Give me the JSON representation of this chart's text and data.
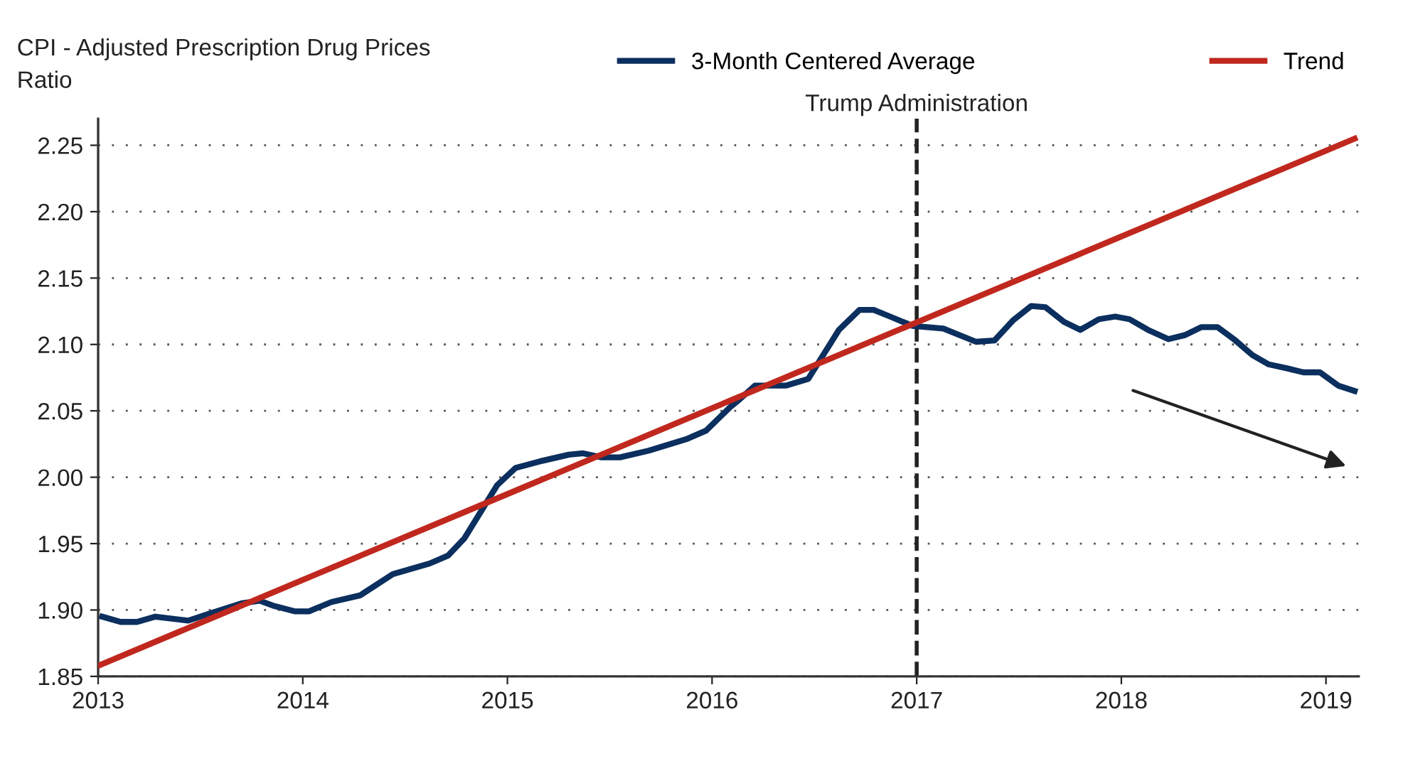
{
  "chart_data": {
    "type": "line",
    "ylabel": "CPI - Adjusted Prescription Drug Prices\nRatio",
    "series": [
      {
        "name": "3-Month Centered Average",
        "color": "#0b2f5e",
        "x": [
          2013.02,
          2013.11,
          2013.19,
          2013.28,
          2013.44,
          2013.54,
          2013.7,
          2013.79,
          2013.86,
          2013.96,
          2014.03,
          2014.14,
          2014.28,
          2014.44,
          2014.62,
          2014.71,
          2014.79,
          2014.95,
          2015.04,
          2015.16,
          2015.3,
          2015.37,
          2015.46,
          2015.55,
          2015.69,
          2015.88,
          2015.97,
          2016.09,
          2016.13,
          2016.21,
          2016.36,
          2016.47,
          2016.62,
          2016.72,
          2016.79,
          2016.87,
          2016.98,
          2017.13,
          2017.29,
          2017.38,
          2017.47,
          2017.56,
          2017.63,
          2017.72,
          2017.8,
          2017.89,
          2017.97,
          2018.04,
          2018.13,
          2018.23,
          2018.31,
          2018.39,
          2018.47,
          2018.55,
          2018.64,
          2018.72,
          2018.81,
          2018.89,
          2018.97,
          2019.06,
          2019.14
        ],
        "values": [
          1.895,
          1.891,
          1.891,
          1.895,
          1.892,
          1.897,
          1.905,
          1.907,
          1.903,
          1.899,
          1.899,
          1.906,
          1.911,
          1.927,
          1.935,
          1.941,
          1.954,
          1.994,
          2.007,
          2.012,
          2.017,
          2.018,
          2.015,
          2.015,
          2.02,
          2.029,
          2.035,
          2.053,
          2.058,
          2.069,
          2.069,
          2.074,
          2.111,
          2.126,
          2.126,
          2.121,
          2.114,
          2.112,
          2.102,
          2.103,
          2.118,
          2.129,
          2.128,
          2.117,
          2.111,
          2.119,
          2.121,
          2.119,
          2.111,
          2.104,
          2.107,
          2.113,
          2.113,
          2.104,
          2.092,
          2.085,
          2.082,
          2.079,
          2.079,
          2.069,
          2.065
        ]
      },
      {
        "name": "Trend",
        "color": "#c0281e",
        "x": [
          2013.0,
          2019.14
        ],
        "values": [
          1.858,
          2.255
        ]
      }
    ],
    "xlim": [
      2013,
      2019.16
    ],
    "xticks": [
      2013,
      2014,
      2015,
      2016,
      2017,
      2018,
      2019
    ],
    "ylim": [
      1.85,
      2.27
    ],
    "yticks": [
      {
        "value": 1.85,
        "label": "1.85"
      },
      {
        "value": 1.9,
        "label": "1.90"
      },
      {
        "value": 1.95,
        "label": "1.95"
      },
      {
        "value": 2.0,
        "label": "2.00"
      },
      {
        "value": 2.05,
        "label": "2.05"
      },
      {
        "value": 2.1,
        "label": "2.10"
      },
      {
        "value": 2.15,
        "label": "2.15"
      },
      {
        "value": 2.2,
        "label": "2.20"
      },
      {
        "value": 2.25,
        "label": "2.25"
      }
    ],
    "grid": "y",
    "legend": "top",
    "marker": "none",
    "line_style": "solid",
    "ref_lines": [
      {
        "axis": "x",
        "value": 2017,
        "label": "Trump Administration",
        "color": "#222222",
        "line_style": "dashed"
      }
    ]
  }
}
